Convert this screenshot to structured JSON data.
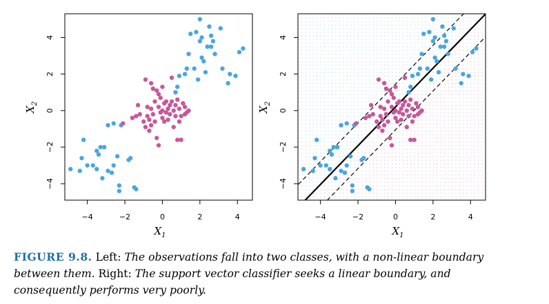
{
  "figure": {
    "label": "FIGURE 9.8.",
    "lead_left": "Left:",
    "text_left": "The observations fall into two classes, with a non-linear boundary between them.",
    "lead_right": "Right:",
    "text_right": "The support vector classifier seeks a linear boundary, and consequently performs very poorly."
  },
  "colors": {
    "blue": "#4aa6de",
    "pink": "#c7589a",
    "line": "#000000"
  },
  "chart_data": [
    {
      "type": "scatter",
      "xlabel": "X1",
      "ylabel": "X2",
      "xlim": [
        -5.2,
        4.8
      ],
      "ylim": [
        -4.9,
        5.3
      ],
      "xticks": [
        -4,
        -2,
        0,
        2,
        4
      ],
      "yticks": [
        -4,
        -2,
        0,
        2,
        4
      ],
      "series": [
        {
          "color": "blue",
          "points": [
            [
              -4.9,
              -3.2
            ],
            [
              -4.4,
              -3.3
            ],
            [
              -4.3,
              -2.6
            ],
            [
              -4.2,
              -1.6
            ],
            [
              -4.0,
              -3.0
            ],
            [
              -3.7,
              -3.0
            ],
            [
              -3.5,
              -3.2
            ],
            [
              -3.5,
              -2.2
            ],
            [
              -3.4,
              -2.4
            ],
            [
              -3.3,
              -2.0
            ],
            [
              -3.2,
              -3.7
            ],
            [
              -3.1,
              -2.0
            ],
            [
              -2.9,
              -3.3
            ],
            [
              -2.7,
              -3.4
            ],
            [
              -2.6,
              -3.0
            ],
            [
              -2.3,
              -4.1
            ],
            [
              -2.3,
              -4.4
            ],
            [
              -2.4,
              -2.5
            ],
            [
              -1.8,
              -2.7
            ],
            [
              -1.7,
              -2.6
            ],
            [
              -1.5,
              -4.2
            ],
            [
              -1.4,
              -4.3
            ],
            [
              -2.2,
              -0.8
            ],
            [
              -2.9,
              -0.8
            ],
            [
              -2.6,
              -0.7
            ],
            [
              0.7,
              1.0
            ],
            [
              0.8,
              1.3
            ],
            [
              0.9,
              1.9
            ],
            [
              1.2,
              2.0
            ],
            [
              1.3,
              2.3
            ],
            [
              1.4,
              3.1
            ],
            [
              1.5,
              4.2
            ],
            [
              1.7,
              2.3
            ],
            [
              1.9,
              1.7
            ],
            [
              2.0,
              3.8
            ],
            [
              2.0,
              5.0
            ],
            [
              2.1,
              4.0
            ],
            [
              2.1,
              2.9
            ],
            [
              2.2,
              2.7
            ],
            [
              2.3,
              2.1
            ],
            [
              2.4,
              3.5
            ],
            [
              2.5,
              4.6
            ],
            [
              2.6,
              4.1
            ],
            [
              2.6,
              3.5
            ],
            [
              2.7,
              3.8
            ],
            [
              3.1,
              4.5
            ],
            [
              3.2,
              2.3
            ],
            [
              3.5,
              1.5
            ],
            [
              3.6,
              2.0
            ],
            [
              3.9,
              1.9
            ],
            [
              4.1,
              3.2
            ],
            [
              4.3,
              3.4
            ],
            [
              2.8,
              3.1
            ],
            [
              1.8,
              4.3
            ]
          ]
        },
        {
          "color": "pink",
          "points": [
            [
              -2.1,
              -0.7
            ],
            [
              -1.6,
              -0.4
            ],
            [
              -1.4,
              -0.3
            ],
            [
              -1.3,
              0.3
            ],
            [
              -0.9,
              1.7
            ],
            [
              -0.6,
              1.5
            ],
            [
              -0.5,
              1.2
            ],
            [
              -0.3,
              1.1
            ],
            [
              -0.2,
              0.9
            ],
            [
              -0.2,
              0.2
            ],
            [
              -0.1,
              -0.1
            ],
            [
              0.0,
              0.0
            ],
            [
              0.1,
              0.4
            ],
            [
              0.2,
              -0.1
            ],
            [
              0.3,
              0.1
            ],
            [
              0.4,
              0.3
            ],
            [
              0.5,
              0.5
            ],
            [
              0.6,
              0.0
            ],
            [
              0.7,
              0.3
            ],
            [
              0.8,
              0.6
            ],
            [
              0.9,
              0.1
            ],
            [
              1.0,
              -0.3
            ],
            [
              1.1,
              0.4
            ],
            [
              1.2,
              0.2
            ],
            [
              1.3,
              -0.1
            ],
            [
              1.4,
              0.0
            ],
            [
              0.5,
              1.8
            ],
            [
              0.2,
              0.5
            ],
            [
              -0.4,
              0.5
            ],
            [
              -0.5,
              -0.2
            ],
            [
              -0.6,
              0.1
            ],
            [
              -0.7,
              -0.5
            ],
            [
              -0.8,
              -0.3
            ],
            [
              -0.9,
              -0.9
            ],
            [
              -0.7,
              -1.1
            ],
            [
              -0.6,
              -0.8
            ],
            [
              -0.4,
              -0.6
            ],
            [
              -0.3,
              -1.5
            ],
            [
              -0.2,
              -1.9
            ],
            [
              0.0,
              -0.4
            ],
            [
              0.1,
              -0.6
            ],
            [
              0.3,
              -0.5
            ],
            [
              0.6,
              -0.9
            ],
            [
              0.8,
              -1.6
            ],
            [
              1.0,
              -1.6
            ],
            [
              0.9,
              -0.6
            ],
            [
              1.2,
              -0.2
            ],
            [
              -0.1,
              0.7
            ],
            [
              0.4,
              -0.2
            ],
            [
              0.7,
              -0.3
            ],
            [
              -1.0,
              -0.6
            ],
            [
              -1.2,
              -0.2
            ],
            [
              -0.8,
              0.2
            ],
            [
              0.0,
              1.3
            ]
          ]
        }
      ]
    },
    {
      "type": "scatter",
      "xlabel": "X1",
      "ylabel": "X2",
      "xlim": [
        -5.2,
        4.8
      ],
      "ylim": [
        -4.9,
        5.3
      ],
      "xticks": [
        -4,
        -2,
        0,
        2,
        4
      ],
      "yticks": [
        -4,
        -2,
        0,
        2,
        4
      ],
      "same_points_as_left": true,
      "background_grid": {
        "upper_left_color": "blue",
        "lower_right_color": "pink"
      },
      "lines": [
        {
          "style": "solid",
          "slope": 1.06,
          "intercept": 0.2
        },
        {
          "style": "dashed",
          "slope": 1.06,
          "intercept": 1.45
        },
        {
          "style": "dashed",
          "slope": 1.06,
          "intercept": -1.05
        }
      ]
    }
  ]
}
